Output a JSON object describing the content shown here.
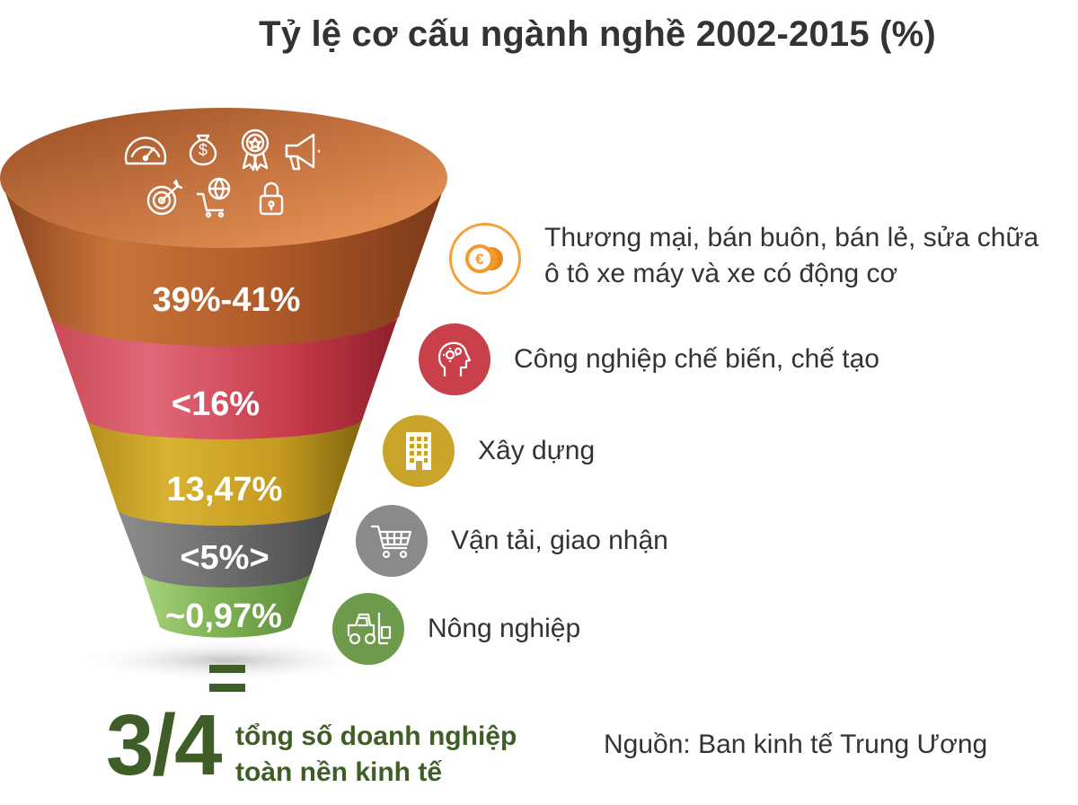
{
  "title": "Tỷ lệ cơ cấu ngành nghề 2002-2015 (%)",
  "segments": [
    {
      "value": "39%-41%",
      "color": "#b86230"
    },
    {
      "value": "<16%",
      "color": "#c9404a"
    },
    {
      "value": "13,47%",
      "color": "#cfa823"
    },
    {
      "value": "<5%>",
      "color": "#6b6b6b"
    },
    {
      "value": "~0,97%",
      "color": "#82b556"
    }
  ],
  "categories": [
    {
      "label_line1": "Thương mại, bán buôn, bán lẻ, sửa chữa",
      "label_line2": "ô tô xe máy và xe có động cơ",
      "icon": "euro-coins-icon",
      "color": "#f5a13a"
    },
    {
      "label": "Công nghiệp chế biến, chế tạo",
      "icon": "head-gears-icon",
      "color": "#c9404a"
    },
    {
      "label": "Xây dựng",
      "icon": "building-icon",
      "color": "#c9a32a"
    },
    {
      "label": "Vận tải, giao nhận",
      "icon": "shopping-cart-icon",
      "color": "#8a8a8a"
    },
    {
      "label": "Nông nghiệp",
      "icon": "forklift-icon",
      "color": "#6e9a4c"
    }
  ],
  "top_icons": [
    "speedometer-icon",
    "money-bag-icon",
    "award-badge-icon",
    "megaphone-icon",
    "target-icon",
    "globe-cart-icon",
    "padlock-icon"
  ],
  "summary": {
    "equals": "=",
    "fraction": "3/4",
    "text_line1": "tổng số doanh nghiệp",
    "text_line2": "toàn nền kinh tế"
  },
  "source": "Nguồn: Ban kinh tế Trung Ương"
}
